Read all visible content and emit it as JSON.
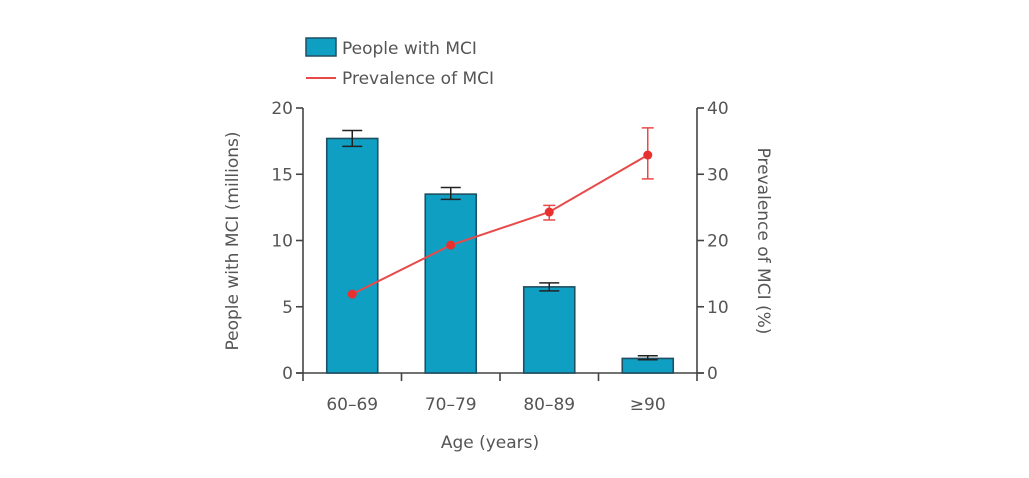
{
  "chart_data": {
    "type": "bar",
    "title": "",
    "xlabel": "Age (years)",
    "ylabel": "People with MCI (millions)",
    "y2label": "Prevalence of MCI (%)",
    "categories": [
      "60–69",
      "70–79",
      "80–89",
      "≥90"
    ],
    "ylim": [
      0,
      20
    ],
    "y2lim": [
      0,
      40
    ],
    "yticks": [
      0,
      5,
      10,
      15,
      20
    ],
    "y2ticks": [
      0,
      10,
      20,
      30,
      40
    ],
    "grid": false,
    "legend_position": "top-left",
    "series": [
      {
        "name": "People with MCI",
        "type": "bar",
        "axis": "left",
        "color": "#0e9fc2",
        "edge_color": "#1f4f62",
        "values": [
          17.7,
          13.5,
          6.5,
          1.1
        ],
        "error_low": [
          17.1,
          13.1,
          6.2,
          1.0
        ],
        "error_high": [
          18.3,
          14.0,
          6.8,
          1.3
        ]
      },
      {
        "name": "Prevalence of MCI",
        "type": "line",
        "axis": "right",
        "color": "#e84a4a",
        "marker_color": "#e8302f",
        "values": [
          11.9,
          19.3,
          24.3,
          32.9
        ],
        "error_low": [
          11.9,
          19.3,
          23.1,
          29.3
        ],
        "error_high": [
          11.9,
          19.3,
          25.3,
          37.0
        ]
      }
    ]
  }
}
